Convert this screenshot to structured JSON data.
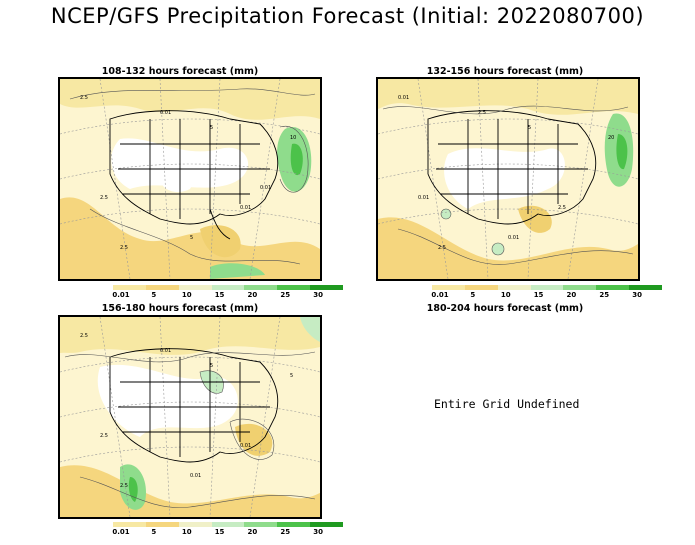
{
  "title": "NCEP/GFS Precipitation Forecast (Initial: 2022080700)",
  "panels": [
    {
      "title": "108-132 hours forecast (mm)",
      "status": ""
    },
    {
      "title": "132-156 hours forecast (mm)",
      "status": ""
    },
    {
      "title": "156-180 hours forecast (mm)",
      "status": ""
    },
    {
      "title": "180-204 hours forecast (mm)",
      "status": "Entire Grid Undefined"
    }
  ],
  "legend": {
    "labels": [
      "0.01",
      "5",
      "10",
      "15",
      "20",
      "25",
      "30"
    ],
    "colors": [
      "#f7e8a3",
      "#f5d67e",
      "#f0f0c8",
      "#c6ecc3",
      "#8fdc8c",
      "#4cc24a",
      "#1f9a20"
    ]
  },
  "contour_labels": {
    "p1": [
      "2.5",
      "0.01",
      "5",
      "2.5",
      "0.01",
      "10",
      "2.5",
      "5",
      "0.01"
    ],
    "p2": [
      "0.01",
      "2.5",
      "5",
      "0.01",
      "2.5",
      "20",
      "2.5",
      "0.01"
    ],
    "p3": [
      "2.5",
      "0.01",
      "5",
      "2.5",
      "0.01",
      "5",
      "2.5",
      "0.01"
    ]
  }
}
